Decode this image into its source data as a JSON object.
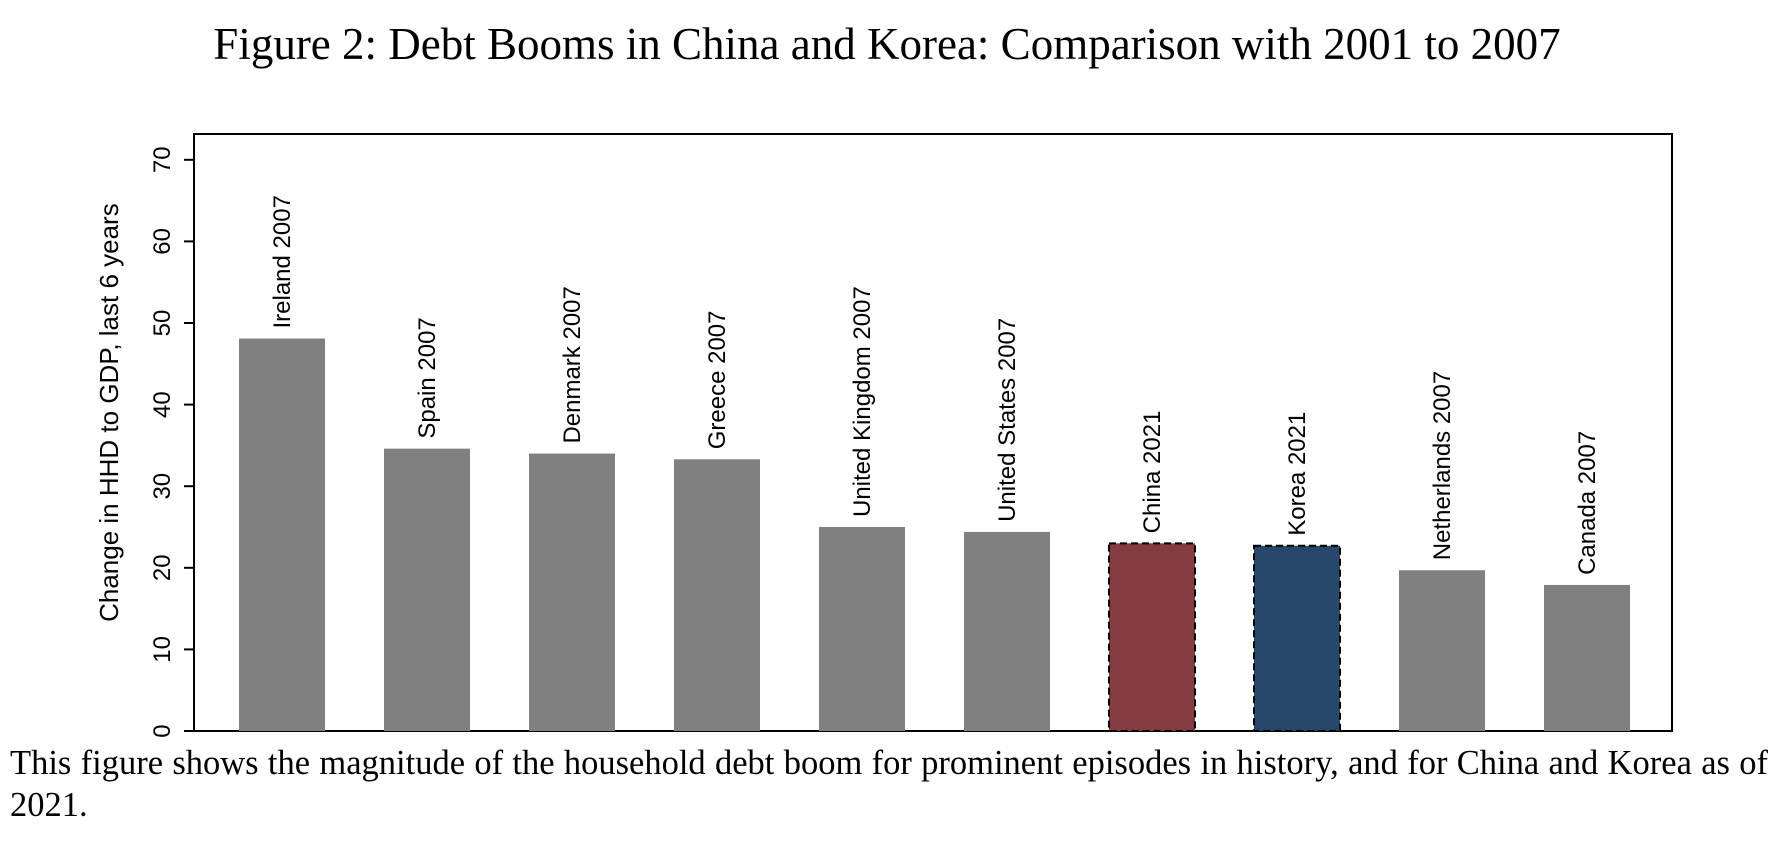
{
  "figure": {
    "title": "Figure 2: Debt Booms in China and Korea: Comparison with 2001 to 2007",
    "caption": "This figure shows the magnitude of the household debt boom for prominent episodes in history, and for China and Korea as of 2021."
  },
  "chart_data": {
    "type": "bar",
    "title": "",
    "xlabel": "",
    "ylabel": "Change in HHD to GDP, last 6 years",
    "ylim": [
      0,
      72
    ],
    "yticks": [
      0,
      10,
      20,
      30,
      40,
      50,
      60,
      70
    ],
    "grid": false,
    "legend": "none",
    "categories": [
      "Ireland 2007",
      "Spain 2007",
      "Denmark 2007",
      "Greece 2007",
      "United Kingdom 2007",
      "United States 2007",
      "China 2021",
      "Korea 2021",
      "Netherlands 2007",
      "Canada 2007"
    ],
    "values": [
      48.1,
      34.6,
      34.0,
      33.3,
      25.0,
      24.4,
      23.0,
      22.7,
      19.7,
      17.9
    ],
    "colors": [
      "#808080",
      "#808080",
      "#808080",
      "#808080",
      "#808080",
      "#808080",
      "#843c41",
      "#264769",
      "#808080",
      "#808080"
    ],
    "highlighted": [
      "China 2021",
      "Korea 2021"
    ]
  }
}
